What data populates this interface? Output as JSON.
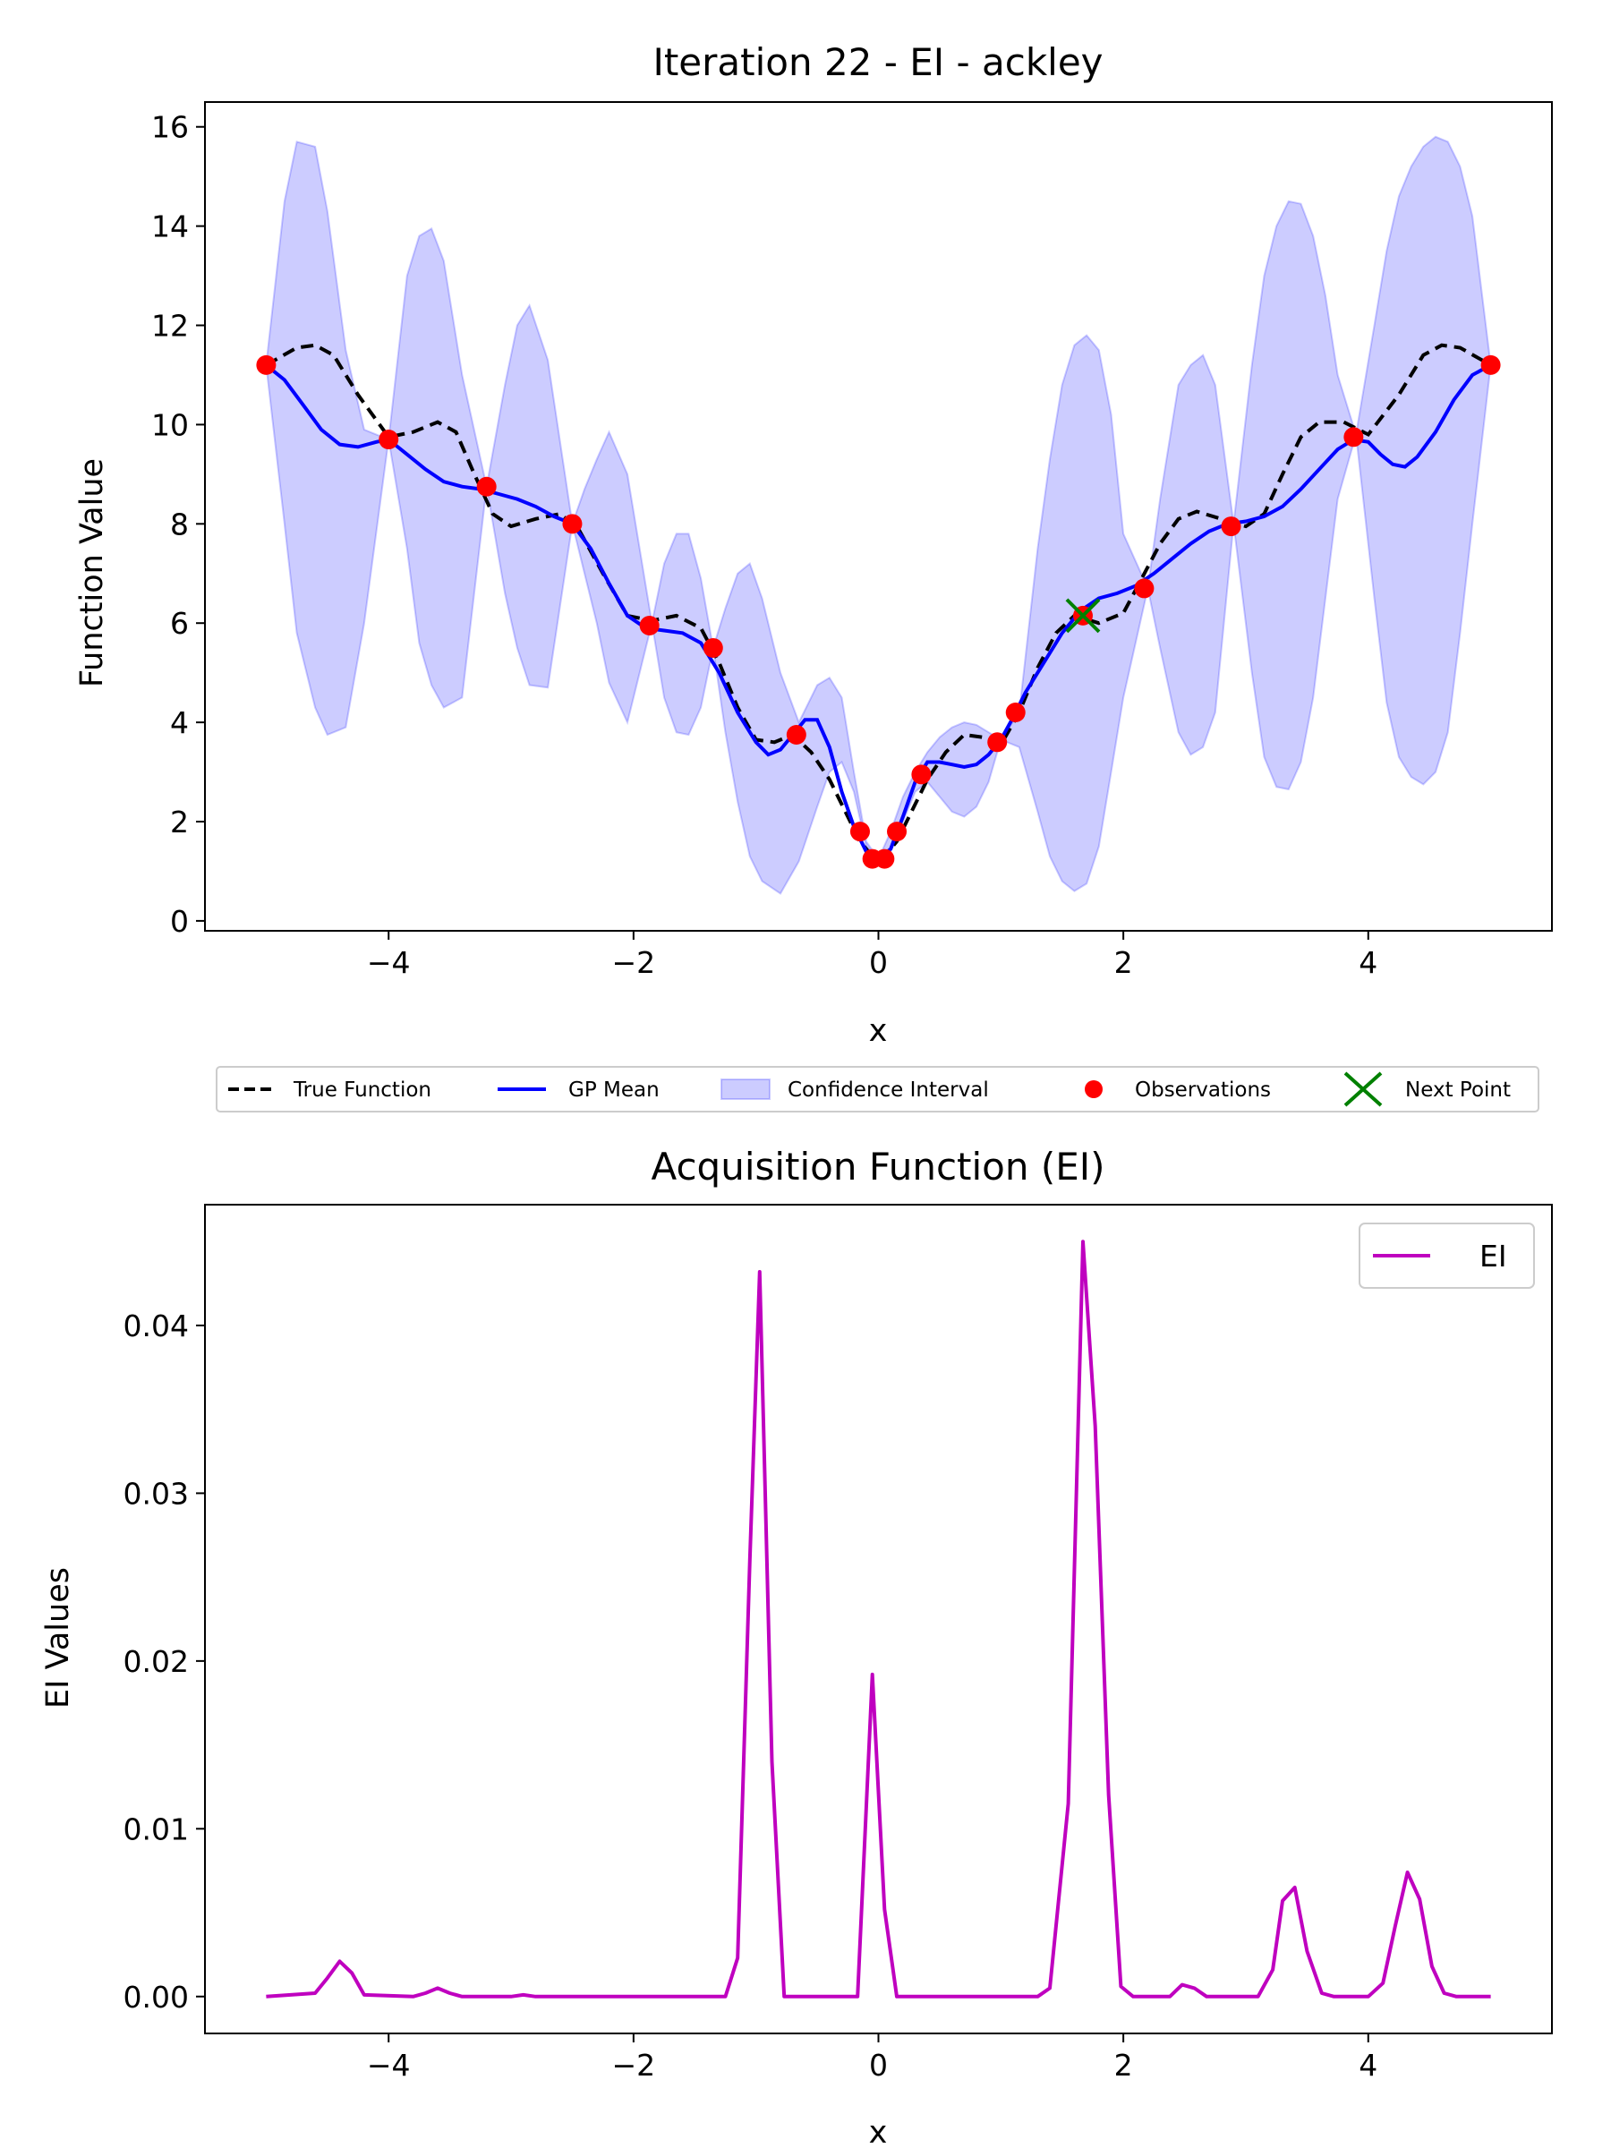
{
  "chart_data": [
    {
      "type": "line",
      "title": "Iteration 22 - EI - ackley",
      "xlabel": "x",
      "ylabel": "Function Value",
      "xlim": [
        -5.5,
        5.5
      ],
      "ylim": [
        -0.2,
        16.5
      ],
      "xticks": [
        -4,
        -2,
        0,
        2,
        4
      ],
      "xtick_labels": [
        "−4",
        "−2",
        "0",
        "2",
        "4"
      ],
      "yticks": [
        0,
        2,
        4,
        6,
        8,
        10,
        12,
        14,
        16
      ],
      "ytick_labels": [
        "0",
        "2",
        "4",
        "6",
        "8",
        "10",
        "12",
        "14",
        "16"
      ],
      "grid": false,
      "legend_position": "below",
      "legend": {
        "true_function": "True Function",
        "gp_mean": "GP Mean",
        "confidence": "Confidence Interval",
        "observations": "Observations",
        "next_point": "Next Point"
      },
      "colors": {
        "true_function": "#000000",
        "gp_mean": "#0000ff",
        "confidence": "#0000ff",
        "observations": "#ff0000",
        "next_point": "#008000"
      },
      "true_function": {
        "x": [
          -5.0,
          -4.75,
          -4.6,
          -4.45,
          -4.25,
          -4.0,
          -3.8,
          -3.6,
          -3.45,
          -3.3,
          -3.15,
          -3.0,
          -2.8,
          -2.6,
          -2.45,
          -2.25,
          -2.05,
          -1.85,
          -1.65,
          -1.45,
          -1.3,
          -1.15,
          -1.0,
          -0.85,
          -0.7,
          -0.55,
          -0.4,
          -0.25,
          -0.15,
          -0.05,
          0.05,
          0.15,
          0.25,
          0.4,
          0.55,
          0.7,
          0.85,
          1.0,
          1.15,
          1.3,
          1.45,
          1.6,
          1.8,
          2.0,
          2.15,
          2.3,
          2.45,
          2.6,
          2.8,
          3.0,
          3.15,
          3.3,
          3.45,
          3.6,
          3.8,
          4.0,
          4.25,
          4.45,
          4.6,
          4.75,
          5.0
        ],
        "y": [
          11.2,
          11.55,
          11.6,
          11.4,
          10.6,
          9.75,
          9.85,
          10.05,
          9.85,
          9.0,
          8.2,
          7.95,
          8.1,
          8.2,
          7.9,
          7.0,
          6.15,
          6.05,
          6.15,
          5.9,
          5.2,
          4.3,
          3.65,
          3.6,
          3.75,
          3.4,
          2.85,
          2.1,
          1.6,
          1.3,
          1.3,
          1.6,
          2.1,
          2.85,
          3.4,
          3.75,
          3.7,
          3.55,
          4.2,
          5.1,
          5.8,
          6.15,
          6.0,
          6.2,
          6.9,
          7.6,
          8.1,
          8.25,
          8.1,
          7.95,
          8.2,
          9.0,
          9.75,
          10.05,
          10.05,
          9.8,
          10.6,
          11.4,
          11.6,
          11.55,
          11.2
        ]
      },
      "gp_mean": {
        "x": [
          -5.0,
          -4.85,
          -4.7,
          -4.55,
          -4.4,
          -4.25,
          -4.1,
          -4.0,
          -3.85,
          -3.7,
          -3.55,
          -3.4,
          -3.25,
          -3.1,
          -2.95,
          -2.8,
          -2.65,
          -2.5,
          -2.35,
          -2.2,
          -2.05,
          -1.9,
          -1.75,
          -1.6,
          -1.45,
          -1.3,
          -1.15,
          -1.0,
          -0.9,
          -0.8,
          -0.7,
          -0.6,
          -0.5,
          -0.4,
          -0.3,
          -0.2,
          -0.1,
          0.0,
          0.1,
          0.2,
          0.3,
          0.4,
          0.5,
          0.6,
          0.7,
          0.8,
          0.9,
          1.0,
          1.1,
          1.2,
          1.35,
          1.5,
          1.65,
          1.8,
          1.95,
          2.1,
          2.25,
          2.4,
          2.55,
          2.7,
          2.85,
          3.0,
          3.15,
          3.3,
          3.45,
          3.6,
          3.75,
          3.88,
          4.0,
          4.1,
          4.2,
          4.3,
          4.4,
          4.55,
          4.7,
          4.85,
          5.0
        ],
        "y": [
          11.2,
          10.9,
          10.4,
          9.9,
          9.6,
          9.55,
          9.65,
          9.7,
          9.4,
          9.1,
          8.85,
          8.75,
          8.7,
          8.6,
          8.5,
          8.35,
          8.15,
          8.0,
          7.5,
          6.8,
          6.15,
          5.9,
          5.85,
          5.8,
          5.6,
          5.0,
          4.2,
          3.6,
          3.35,
          3.45,
          3.75,
          4.05,
          4.05,
          3.5,
          2.6,
          1.9,
          1.4,
          1.25,
          1.45,
          2.1,
          2.8,
          3.2,
          3.2,
          3.15,
          3.1,
          3.15,
          3.35,
          3.65,
          4.1,
          4.6,
          5.2,
          5.8,
          6.25,
          6.5,
          6.6,
          6.75,
          7.0,
          7.3,
          7.6,
          7.85,
          8.0,
          8.05,
          8.15,
          8.35,
          8.7,
          9.1,
          9.5,
          9.7,
          9.65,
          9.4,
          9.2,
          9.15,
          9.35,
          9.85,
          10.5,
          11.0,
          11.2
        ]
      },
      "confidence_upper": {
        "x": [
          -5.0,
          -4.85,
          -4.75,
          -4.6,
          -4.5,
          -4.35,
          -4.2,
          -4.0,
          -3.85,
          -3.75,
          -3.65,
          -3.55,
          -3.4,
          -3.2,
          -3.05,
          -2.95,
          -2.85,
          -2.7,
          -2.5,
          -2.4,
          -2.3,
          -2.2,
          -2.05,
          -1.85,
          -1.75,
          -1.65,
          -1.55,
          -1.45,
          -1.35,
          -1.25,
          -1.15,
          -1.05,
          -0.95,
          -0.8,
          -0.65,
          -0.5,
          -0.4,
          -0.3,
          -0.2,
          -0.1,
          0.0,
          0.1,
          0.2,
          0.3,
          0.4,
          0.5,
          0.6,
          0.7,
          0.8,
          0.9,
          1.0,
          1.15,
          1.3,
          1.4,
          1.5,
          1.6,
          1.7,
          1.8,
          1.9,
          2.0,
          2.2,
          2.3,
          2.45,
          2.55,
          2.65,
          2.75,
          2.9,
          3.05,
          3.15,
          3.25,
          3.35,
          3.45,
          3.55,
          3.65,
          3.75,
          3.9,
          4.05,
          4.15,
          4.25,
          4.35,
          4.45,
          4.55,
          4.65,
          4.75,
          4.85,
          5.0
        ],
        "y": [
          11.2,
          14.5,
          15.7,
          15.6,
          14.3,
          11.5,
          9.9,
          9.7,
          13.0,
          13.8,
          13.95,
          13.3,
          11.0,
          8.75,
          10.8,
          12.0,
          12.4,
          11.3,
          8.0,
          8.7,
          9.3,
          9.85,
          9.0,
          6.0,
          7.2,
          7.8,
          7.8,
          6.9,
          5.5,
          6.3,
          7.0,
          7.2,
          6.5,
          5.0,
          4.0,
          4.75,
          4.9,
          4.5,
          3.0,
          1.6,
          1.25,
          1.8,
          2.5,
          3.0,
          3.4,
          3.7,
          3.9,
          4.0,
          3.95,
          3.8,
          3.65,
          4.2,
          7.5,
          9.3,
          10.8,
          11.6,
          11.8,
          11.5,
          10.2,
          7.8,
          6.7,
          8.5,
          10.8,
          11.2,
          11.4,
          10.8,
          8.0,
          11.2,
          13.0,
          14.0,
          14.5,
          14.45,
          13.8,
          12.6,
          11.0,
          9.8,
          12.0,
          13.5,
          14.6,
          15.2,
          15.6,
          15.8,
          15.7,
          15.2,
          14.2,
          11.2
        ]
      },
      "confidence_lower": {
        "x": [
          -5.0,
          -4.85,
          -4.75,
          -4.6,
          -4.5,
          -4.35,
          -4.2,
          -4.0,
          -3.85,
          -3.75,
          -3.65,
          -3.55,
          -3.4,
          -3.2,
          -3.05,
          -2.95,
          -2.85,
          -2.7,
          -2.5,
          -2.4,
          -2.3,
          -2.2,
          -2.05,
          -1.85,
          -1.75,
          -1.65,
          -1.55,
          -1.45,
          -1.35,
          -1.25,
          -1.15,
          -1.05,
          -0.95,
          -0.8,
          -0.65,
          -0.5,
          -0.4,
          -0.3,
          -0.2,
          -0.1,
          0.0,
          0.1,
          0.2,
          0.3,
          0.4,
          0.5,
          0.6,
          0.7,
          0.8,
          0.9,
          1.0,
          1.15,
          1.3,
          1.4,
          1.5,
          1.6,
          1.7,
          1.8,
          1.9,
          2.0,
          2.2,
          2.3,
          2.45,
          2.55,
          2.65,
          2.75,
          2.9,
          3.05,
          3.15,
          3.25,
          3.35,
          3.45,
          3.55,
          3.65,
          3.75,
          3.9,
          4.05,
          4.15,
          4.25,
          4.35,
          4.45,
          4.55,
          4.65,
          4.75,
          4.85,
          5.0
        ],
        "y": [
          11.2,
          8.0,
          5.8,
          4.3,
          3.75,
          3.9,
          6.0,
          9.7,
          7.5,
          5.6,
          4.75,
          4.3,
          4.5,
          8.75,
          6.6,
          5.5,
          4.75,
          4.7,
          8.0,
          7.0,
          6.0,
          4.8,
          4.0,
          6.0,
          4.5,
          3.8,
          3.75,
          4.3,
          5.5,
          3.8,
          2.4,
          1.3,
          0.8,
          0.55,
          1.2,
          2.3,
          3.0,
          3.2,
          2.6,
          1.5,
          1.25,
          1.4,
          2.0,
          2.6,
          2.8,
          2.5,
          2.2,
          2.1,
          2.3,
          2.8,
          3.65,
          3.5,
          2.2,
          1.3,
          0.8,
          0.6,
          0.75,
          1.5,
          3.0,
          4.5,
          6.7,
          5.5,
          3.8,
          3.35,
          3.5,
          4.2,
          8.0,
          5.0,
          3.3,
          2.7,
          2.65,
          3.2,
          4.5,
          6.5,
          8.5,
          9.8,
          6.5,
          4.4,
          3.3,
          2.9,
          2.75,
          3.0,
          3.8,
          5.8,
          8.0,
          11.2
        ]
      },
      "observations": {
        "x": [
          -5.0,
          -4.0,
          -3.2,
          -2.5,
          -1.87,
          -1.35,
          -0.67,
          -0.15,
          -0.05,
          0.05,
          0.15,
          0.35,
          0.97,
          1.12,
          1.67,
          2.17,
          2.88,
          3.88,
          5.0
        ],
        "y": [
          11.2,
          9.7,
          8.75,
          8.0,
          5.95,
          5.5,
          3.75,
          1.8,
          1.25,
          1.25,
          1.8,
          2.95,
          3.6,
          4.2,
          6.15,
          6.7,
          7.95,
          9.75,
          11.2
        ]
      },
      "next_point": {
        "x": 1.67,
        "y": 6.15
      }
    },
    {
      "type": "line",
      "title": "Acquisition Function (EI)",
      "xlabel": "x",
      "ylabel": "EI Values",
      "xlim": [
        -5.5,
        5.5
      ],
      "ylim": [
        -0.0022,
        0.0472
      ],
      "xticks": [
        -4,
        -2,
        0,
        2,
        4
      ],
      "xtick_labels": [
        "−4",
        "−2",
        "0",
        "2",
        "4"
      ],
      "yticks": [
        0.0,
        0.01,
        0.02,
        0.03,
        0.04
      ],
      "ytick_labels": [
        "0.00",
        "0.01",
        "0.02",
        "0.03",
        "0.04"
      ],
      "grid": false,
      "legend_position": "upper right",
      "color": "#bf00bf",
      "series": [
        {
          "name": "EI",
          "x": [
            -5.0,
            -4.6,
            -4.5,
            -4.4,
            -4.3,
            -4.2,
            -3.8,
            -3.7,
            -3.6,
            -3.5,
            -3.4,
            -3.0,
            -2.9,
            -2.8,
            -2.2,
            -1.4,
            -1.25,
            -1.15,
            -1.05,
            -0.97,
            -0.87,
            -0.77,
            -0.17,
            -0.05,
            0.05,
            0.15,
            1.15,
            1.3,
            1.4,
            1.55,
            1.67,
            1.77,
            1.88,
            1.98,
            2.08,
            2.38,
            2.48,
            2.58,
            2.68,
            3.0,
            3.1,
            3.22,
            3.3,
            3.4,
            3.5,
            3.62,
            3.72,
            4.0,
            4.12,
            4.22,
            4.32,
            4.42,
            4.52,
            4.62,
            4.72,
            4.82,
            5.0
          ],
          "y": [
            0.0,
            0.0002,
            0.0011,
            0.0021,
            0.0014,
            0.0001,
            0.0,
            0.0002,
            0.0005,
            0.0002,
            0.0,
            0.0,
            0.0001,
            0.0,
            0.0,
            0.0,
            0.0,
            0.0023,
            0.026,
            0.0432,
            0.014,
            0.0,
            0.0,
            0.0192,
            0.0052,
            0.0,
            0.0,
            0.0,
            0.0005,
            0.0115,
            0.045,
            0.034,
            0.012,
            0.0006,
            0.0,
            0.0,
            0.0007,
            0.0005,
            0.0,
            0.0,
            0.0,
            0.0016,
            0.0057,
            0.0065,
            0.0027,
            0.0002,
            0.0,
            0.0,
            0.0008,
            0.0042,
            0.0074,
            0.0058,
            0.0018,
            0.0002,
            0.0,
            0.0,
            0.0
          ]
        }
      ]
    }
  ]
}
